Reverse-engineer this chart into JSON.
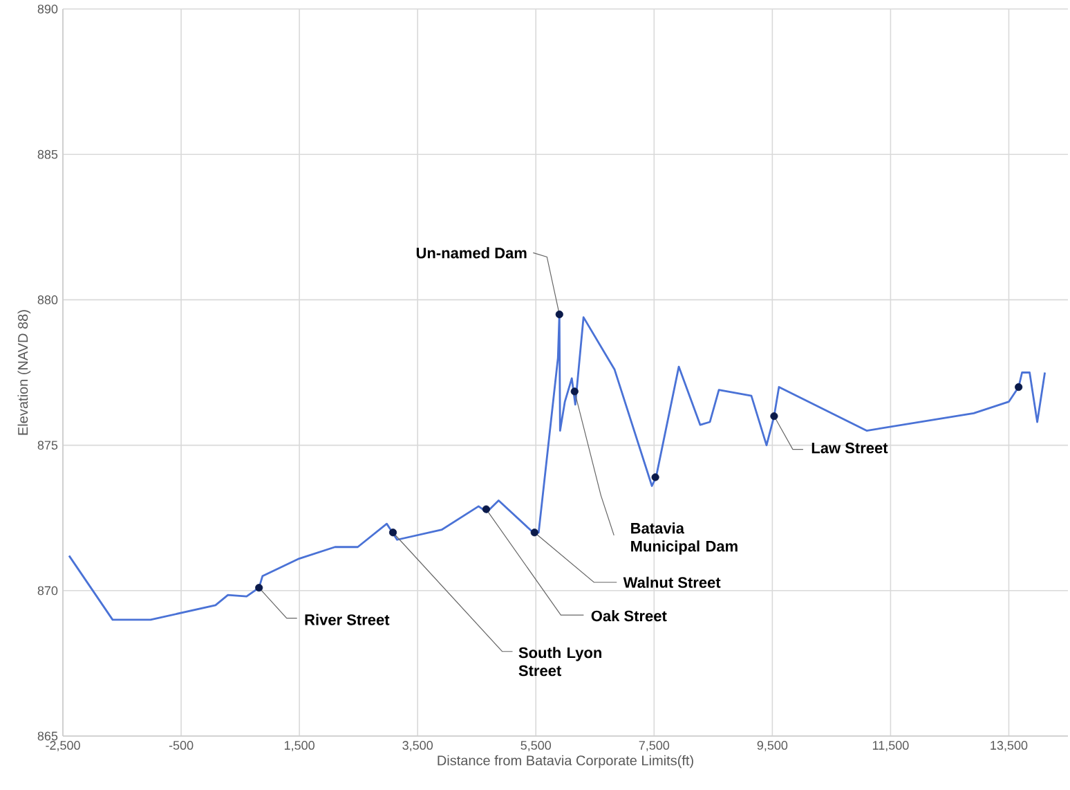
{
  "chart_data": {
    "type": "line",
    "xlabel": "Distance from Batavia Corporate Limits(ft)",
    "ylabel": "Elevation (NAVD 88)",
    "xlim": [
      -2500,
      14500
    ],
    "ylim": [
      865,
      890
    ],
    "xticks": [
      {
        "value": -2500,
        "label": "-2,500"
      },
      {
        "value": -500,
        "label": "-500"
      },
      {
        "value": 1500,
        "label": "1,500"
      },
      {
        "value": 3500,
        "label": "3,500"
      },
      {
        "value": 5500,
        "label": "5,500"
      },
      {
        "value": 7500,
        "label": "7,500"
      },
      {
        "value": 9500,
        "label": "9,500"
      },
      {
        "value": 11500,
        "label": "11,500"
      },
      {
        "value": 13500,
        "label": "13,500"
      }
    ],
    "yticks": [
      865,
      870,
      875,
      880,
      885,
      890
    ],
    "grid": true,
    "series": [
      {
        "color": "#4a72d6",
        "x": [
          -2395,
          -1659,
          -1017,
          81,
          291,
          607,
          817,
          876,
          1495,
          2102,
          2487,
          2978,
          3153,
          3912,
          4531,
          4671,
          4870,
          5454,
          5547,
          5874,
          5898,
          5910,
          5991,
          6108,
          6167,
          6306,
          6832,
          7463,
          7533,
          7918,
          8280,
          8444,
          8596,
          9145,
          9402,
          9530,
          9612,
          11095,
          12906,
          13502,
          13666,
          13724,
          13852,
          13981,
          14110
        ],
        "values": [
          871.2,
          869.0,
          869.0,
          869.5,
          869.85,
          869.8,
          870.1,
          870.5,
          871.1,
          871.5,
          871.5,
          872.3,
          871.75,
          872.1,
          872.9,
          872.7,
          873.1,
          872.0,
          872.0,
          878.0,
          879.5,
          875.5,
          876.5,
          877.3,
          876.4,
          879.4,
          877.6,
          873.6,
          873.9,
          877.7,
          875.7,
          875.8,
          876.9,
          876.7,
          875.0,
          876.0,
          877.0,
          875.5,
          876.1,
          876.5,
          877.0,
          877.5,
          877.5,
          875.8,
          877.5
        ]
      },
      {
        "type": "scatter",
        "color": "#0b1a4a",
        "x": [
          817,
          3083,
          4660,
          5477,
          5898,
          6155,
          7521,
          9530,
          13666
        ],
        "values": [
          870.1,
          872.0,
          872.8,
          872.0,
          879.5,
          876.85,
          873.9,
          876.0,
          877.0
        ]
      }
    ],
    "annotations": [
      {
        "text": "River Street",
        "x": 817,
        "y": 870.1
      },
      {
        "text": "South Lyon Street",
        "x": 3083,
        "y": 872.0
      },
      {
        "text": "Oak Street",
        "x": 4660,
        "y": 872.8
      },
      {
        "text": "Walnut Street",
        "x": 5477,
        "y": 872.0
      },
      {
        "text": "Un-named Dam",
        "x": 5898,
        "y": 879.5
      },
      {
        "text": "Batavia Municipal Dam",
        "x": 6155,
        "y": 876.85
      },
      {
        "text": "Law Street",
        "x": 9530,
        "y": 876.0
      }
    ]
  }
}
